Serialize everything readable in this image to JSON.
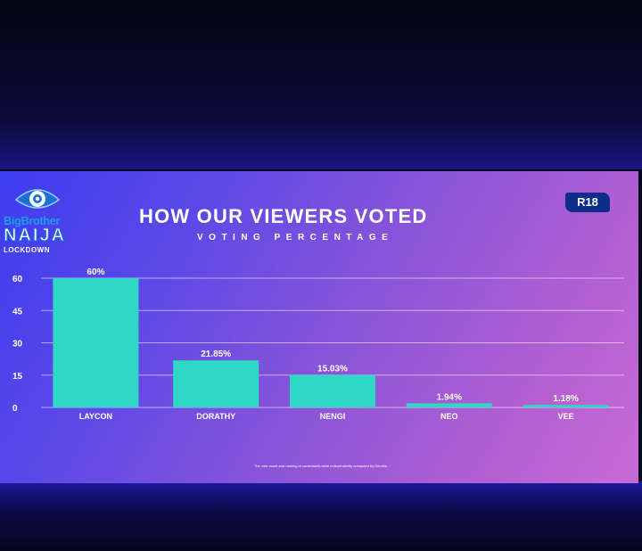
{
  "logo": {
    "brand": "BigBrother",
    "show": "NAIJA",
    "edition": "LOCKDOWN"
  },
  "badge": "R18",
  "chart_data": {
    "type": "bar",
    "title": "HOW OUR VIEWERS VOTED",
    "subtitle": "VOTING PERCENTAGE",
    "categories": [
      "LAYCON",
      "DORATHY",
      "NENGI",
      "NEO",
      "VEE"
    ],
    "values": [
      60,
      21.85,
      15.03,
      1.94,
      1.18
    ],
    "data_labels": [
      "60%",
      "21.85%",
      "15.03%",
      "1.94%",
      "1.18%"
    ],
    "yticks": [
      0,
      15,
      30,
      45,
      60
    ],
    "ylim": [
      0,
      60
    ],
    "grid": true,
    "xlabel": "",
    "ylabel": "",
    "bar_color": "#2fd8c4"
  },
  "footnote": "The vote count and ranking of contestants were independently computed by Deloitte."
}
